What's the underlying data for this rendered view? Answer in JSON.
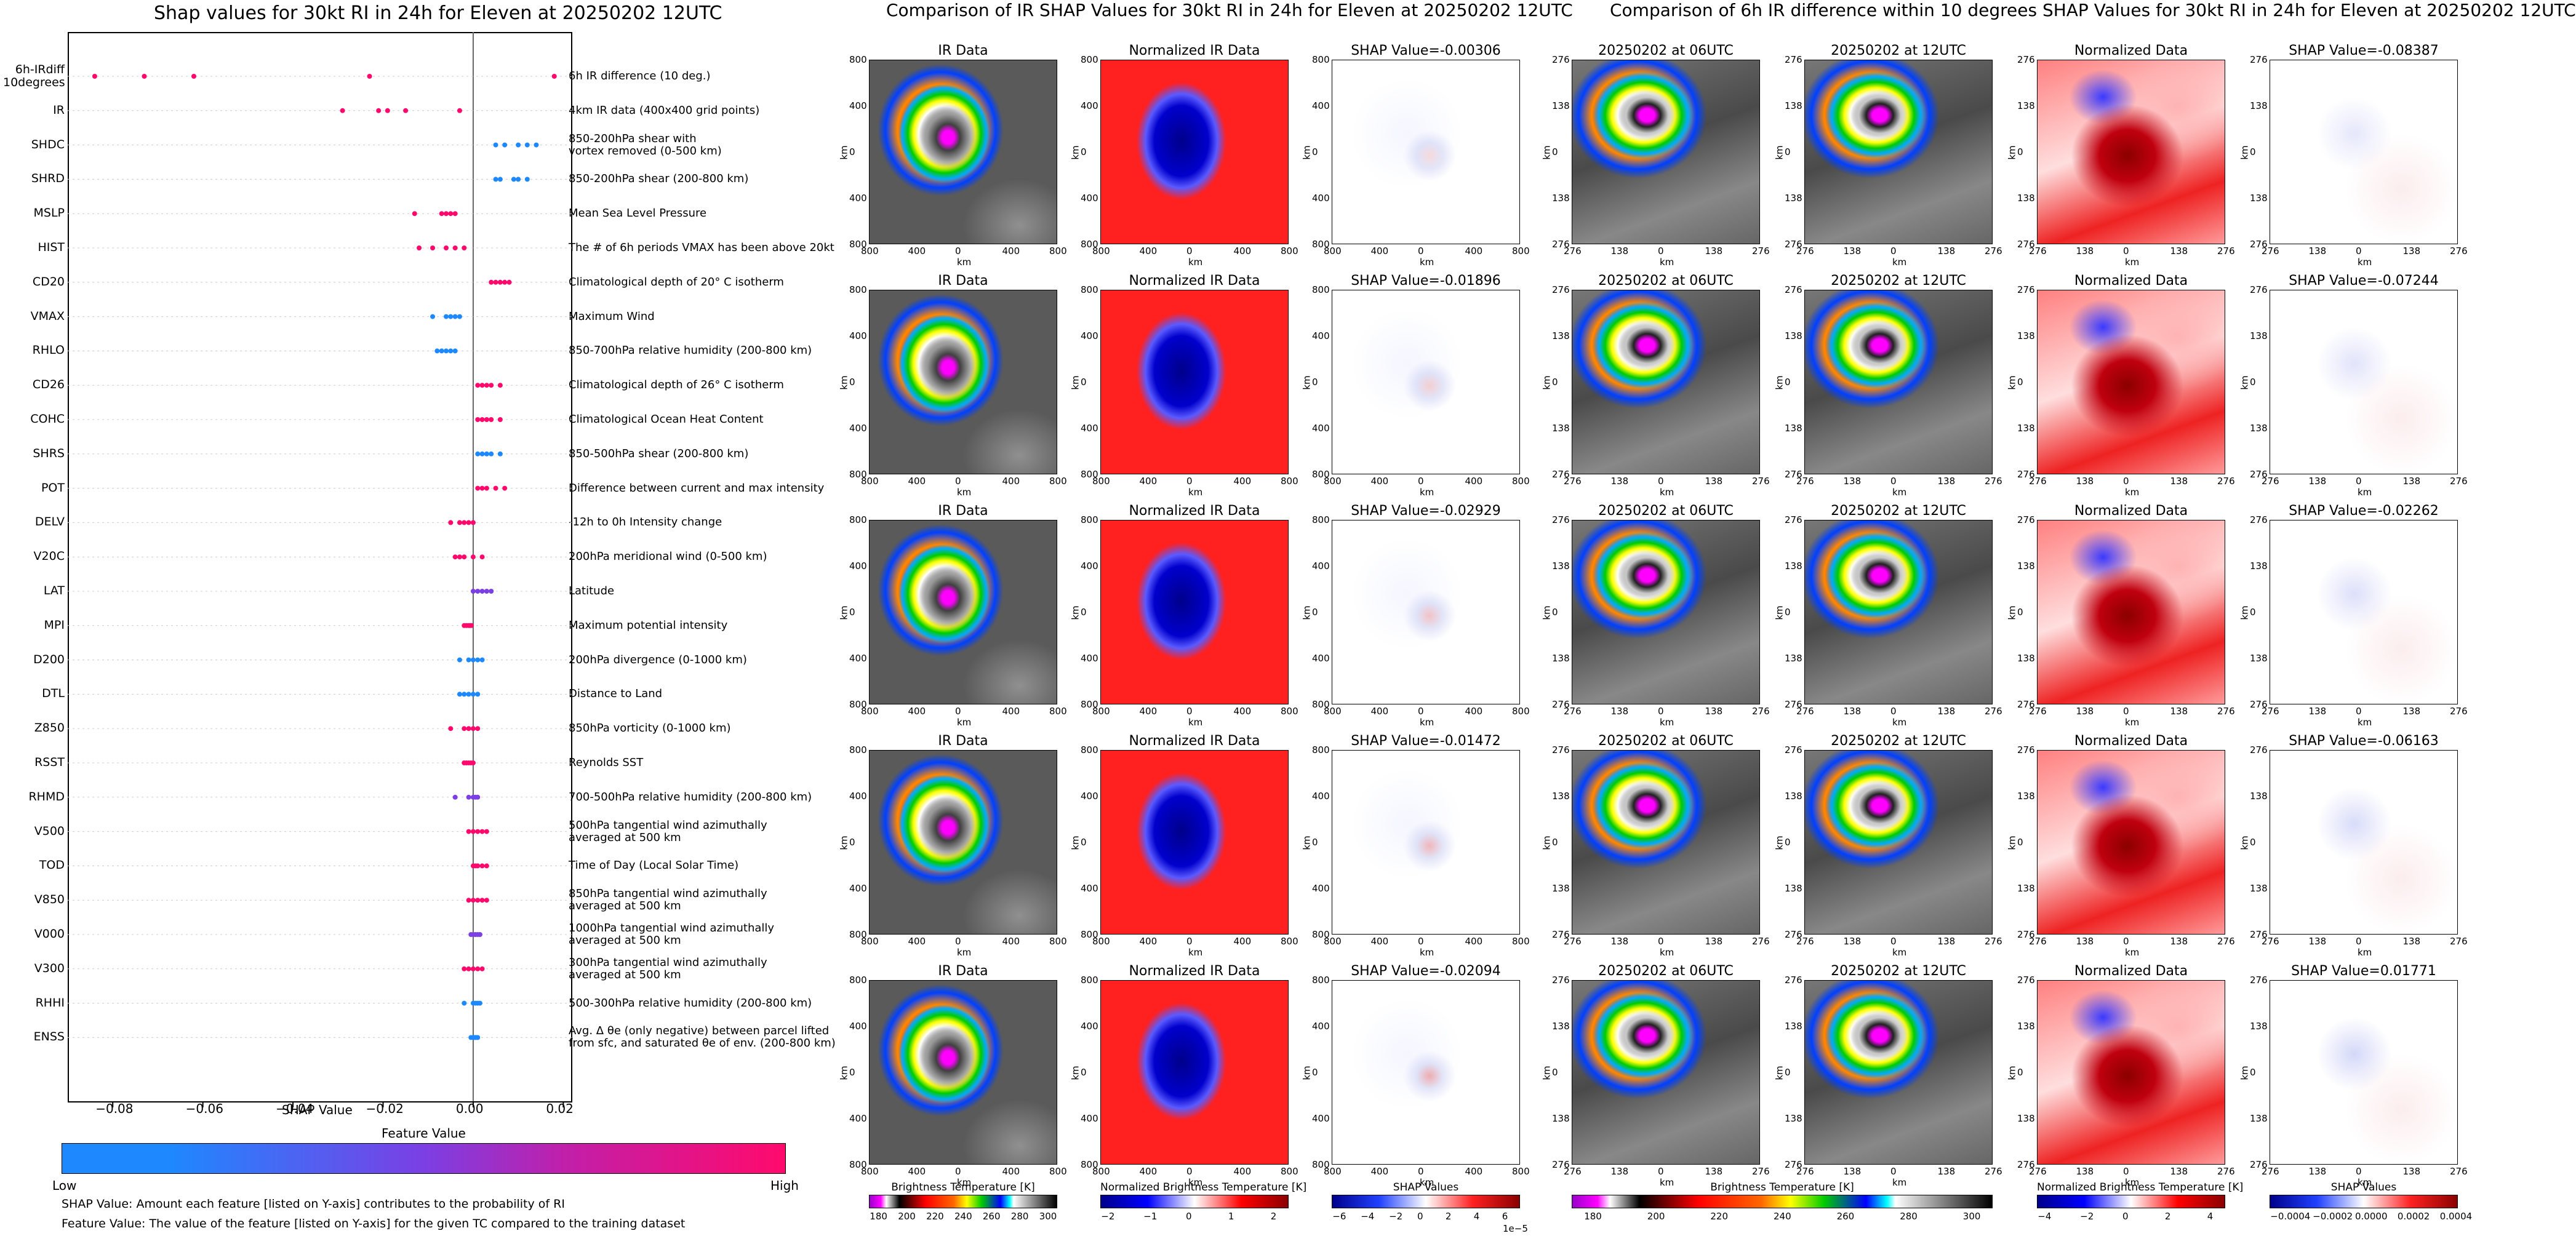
{
  "colors": {
    "low": "#1e88ff",
    "mid": "#7b3fe4",
    "high": "#ff0a6c",
    "ir_cold": "#ff00ff",
    "shap_pos": "#d7191c",
    "shap_neg": "#1f3fbf"
  },
  "left": {
    "title": "Shap values for 30kt RI in 24h for Eleven at 20250202 12UTC",
    "xlabel": "SHAP Value",
    "cb_title": "Feature Value",
    "cb_low": "Low",
    "cb_high": "High",
    "note1": "SHAP Value: Amount each feature [listed on Y-axis] contributes to the probability of RI",
    "note2": "Feature Value: The value of the feature [listed on Y-axis] for the given TC compared to the training dataset"
  },
  "mid_title": "Comparison of IR SHAP Values for 30kt RI in 24h for Eleven at 20250202 12UTC",
  "right_title": "Comparison of 6h IR difference within 10 degrees SHAP Values for 30kt RI in 24h for Eleven at 20250202 12UTC",
  "panel_titles": {
    "ir": "IR Data",
    "nir": "Normalized IR Data",
    "d06": "20250202 at 06UTC",
    "d12": "20250202 at 12UTC",
    "nd": "Normalized Data"
  },
  "axis": {
    "km": "km",
    "ir_ticks_y": [
      "800",
      "400",
      "0",
      "400",
      "800"
    ],
    "ir_ticks_x": [
      "800",
      "400",
      "0",
      "400",
      "800"
    ],
    "d_ticks": [
      "276",
      "138",
      "0",
      "138",
      "276"
    ]
  },
  "rows": [
    {
      "ir_shap": "SHAP Value=-0.00306",
      "d_shap": "SHAP Value=-0.08387"
    },
    {
      "ir_shap": "SHAP Value=-0.01896",
      "d_shap": "SHAP Value=-0.07244"
    },
    {
      "ir_shap": "SHAP Value=-0.02929",
      "d_shap": "SHAP Value=-0.02262"
    },
    {
      "ir_shap": "SHAP Value=-0.01472",
      "d_shap": "SHAP Value=-0.06163"
    },
    {
      "ir_shap": "SHAP Value=-0.02094",
      "d_shap": "SHAP Value=0.01771"
    }
  ],
  "colorbars": [
    {
      "title": "Brightness Temperature [K]",
      "ticks": [
        "180",
        "200",
        "220",
        "240",
        "260",
        "280",
        "300"
      ],
      "extra": ""
    },
    {
      "title": "Normalized Brightness Temperature [K]",
      "ticks": [
        "−2",
        "−1",
        "0",
        "1",
        "2"
      ],
      "extra": ""
    },
    {
      "title": "SHAP Values",
      "ticks": [
        "−6",
        "−4",
        "−2",
        "0",
        "2",
        "4",
        "6"
      ],
      "extra": "1e−5"
    },
    {
      "title": "Brightness Temperature [K]",
      "ticks": [
        "180",
        "200",
        "220",
        "240",
        "260",
        "280",
        "300"
      ],
      "extra": ""
    },
    {
      "title": "Normalized Brightness Temperature [K]",
      "ticks": [
        "−4",
        "−2",
        "0",
        "2",
        "4"
      ],
      "extra": ""
    },
    {
      "title": "SHAP Values",
      "ticks": [
        "−0.0004",
        "−0.0002",
        "0.0000",
        "0.0002",
        "0.0004"
      ],
      "extra": ""
    }
  ],
  "chart_data": {
    "type": "scatter",
    "title": "Shap values for 30kt RI in 24h for Eleven at 20250202 12UTC",
    "xlabel": "SHAP Value",
    "xlim": [
      -0.09,
      0.022
    ],
    "xticks": [
      "−0.08",
      "−0.06",
      "−0.04",
      "−0.02",
      "0.00",
      "0.02"
    ],
    "xtick_values": [
      -0.08,
      -0.06,
      -0.04,
      -0.02,
      0.0,
      0.02
    ],
    "features": [
      {
        "name": "6h-IRdiff\n10degrees",
        "desc": "6h IR difference (10 deg.)",
        "c": "high",
        "pts": [
          -0.084,
          -0.073,
          -0.062,
          -0.023,
          0.018
        ]
      },
      {
        "name": "IR",
        "desc": "4km IR data (400x400 grid points)",
        "c": "high",
        "pts": [
          -0.029,
          -0.021,
          -0.019,
          -0.015,
          -0.003
        ]
      },
      {
        "name": "SHDC",
        "desc": "850-200hPa shear with\nvortex removed (0-500 km)",
        "c": "low",
        "pts": [
          0.005,
          0.007,
          0.01,
          0.012,
          0.014
        ]
      },
      {
        "name": "SHRD",
        "desc": "850-200hPa shear (200-800 km)",
        "c": "low",
        "pts": [
          0.005,
          0.006,
          0.009,
          0.01,
          0.012
        ]
      },
      {
        "name": "MSLP",
        "desc": "Mean Sea Level Pressure",
        "c": "high",
        "pts": [
          -0.013,
          -0.007,
          -0.006,
          -0.005,
          -0.004
        ]
      },
      {
        "name": "HIST",
        "desc": "The # of 6h periods VMAX has been above 20kt",
        "c": "high",
        "pts": [
          -0.012,
          -0.009,
          -0.006,
          -0.004,
          -0.002
        ]
      },
      {
        "name": "CD20",
        "desc": "Climatological depth of 20° C isotherm",
        "c": "high",
        "pts": [
          0.004,
          0.005,
          0.006,
          0.007,
          0.008
        ]
      },
      {
        "name": "VMAX",
        "desc": "Maximum Wind",
        "c": "low",
        "pts": [
          -0.009,
          -0.006,
          -0.005,
          -0.004,
          -0.003
        ]
      },
      {
        "name": "RHLO",
        "desc": "850-700hPa relative humidity (200-800 km)",
        "c": "low",
        "pts": [
          -0.008,
          -0.007,
          -0.006,
          -0.005,
          -0.004
        ]
      },
      {
        "name": "CD26",
        "desc": "Climatological depth of 26° C isotherm",
        "c": "high",
        "pts": [
          0.001,
          0.002,
          0.003,
          0.004,
          0.006
        ]
      },
      {
        "name": "COHC",
        "desc": "Climatological Ocean Heat Content",
        "c": "high",
        "pts": [
          0.001,
          0.002,
          0.003,
          0.004,
          0.006
        ]
      },
      {
        "name": "SHRS",
        "desc": "850-500hPa shear (200-800 km)",
        "c": "low",
        "pts": [
          0.001,
          0.002,
          0.003,
          0.004,
          0.006
        ]
      },
      {
        "name": "POT",
        "desc": "Difference between current and max intensity",
        "c": "high",
        "pts": [
          0.001,
          0.002,
          0.003,
          0.005,
          0.007
        ]
      },
      {
        "name": "DELV",
        "desc": "-12h to 0h Intensity change",
        "c": "high",
        "pts": [
          -0.005,
          -0.003,
          -0.002,
          -0.001,
          0.0
        ]
      },
      {
        "name": "V20C",
        "desc": "200hPa meridional wind (0-500 km)",
        "c": "high",
        "pts": [
          -0.004,
          -0.003,
          -0.002,
          0.0,
          0.002
        ]
      },
      {
        "name": "LAT",
        "desc": "Latitude",
        "c": "mid",
        "pts": [
          0.0,
          0.001,
          0.002,
          0.003,
          0.004
        ]
      },
      {
        "name": "MPI",
        "desc": "Maximum potential intensity",
        "c": "high",
        "pts": [
          -0.002,
          -0.0015,
          -0.001,
          -0.0007,
          -0.0004
        ]
      },
      {
        "name": "D200",
        "desc": "200hPa divergence (0-1000 km)",
        "c": "low",
        "pts": [
          -0.003,
          -0.001,
          0.0,
          0.001,
          0.002
        ]
      },
      {
        "name": "DTL",
        "desc": "Distance to Land",
        "c": "low",
        "pts": [
          -0.003,
          -0.002,
          -0.001,
          0.0,
          0.001
        ]
      },
      {
        "name": "Z850",
        "desc": "850hPa vorticity (0-1000 km)",
        "c": "high",
        "pts": [
          -0.005,
          -0.002,
          -0.001,
          0.0,
          0.001
        ]
      },
      {
        "name": "RSST",
        "desc": "Reynolds SST",
        "c": "high",
        "pts": [
          -0.002,
          -0.0015,
          -0.001,
          -0.0005,
          0.0
        ]
      },
      {
        "name": "RHMD",
        "desc": "700-500hPa relative humidity (200-800 km)",
        "c": "mid",
        "pts": [
          -0.004,
          -0.001,
          0.0,
          0.0005,
          0.001
        ]
      },
      {
        "name": "V500",
        "desc": "500hPa tangential wind azimuthally\naveraged at 500 km",
        "c": "high",
        "pts": [
          -0.001,
          0.0,
          0.001,
          0.002,
          0.003
        ]
      },
      {
        "name": "TOD",
        "desc": "Time of Day (Local Solar Time)",
        "c": "high",
        "pts": [
          0.0,
          0.0005,
          0.001,
          0.002,
          0.003
        ]
      },
      {
        "name": "V850",
        "desc": "850hPa tangential wind azimuthally\naveraged at 500 km",
        "c": "high",
        "pts": [
          -0.001,
          0.0,
          0.001,
          0.002,
          0.003
        ]
      },
      {
        "name": "V000",
        "desc": "1000hPa tangential wind azimuthally\naveraged at 500 km",
        "c": "mid",
        "pts": [
          -0.0005,
          0.0,
          0.0005,
          0.001,
          0.0015
        ]
      },
      {
        "name": "V300",
        "desc": "300hPa tangential wind azimuthally\naveraged at 500 km",
        "c": "high",
        "pts": [
          -0.002,
          -0.001,
          0.0,
          0.001,
          0.002
        ]
      },
      {
        "name": "RHHI",
        "desc": "500-300hPa relative humidity (200-800 km)",
        "c": "low",
        "pts": [
          -0.002,
          0.0,
          0.0005,
          0.001,
          0.0015
        ]
      },
      {
        "name": "ENSS",
        "desc": "Avg. Δ θe (only negative) between parcel lifted\nfrom sfc, and saturated θe of env. (200-800 km)",
        "c": "low",
        "pts": [
          -0.0005,
          0.0,
          0.0003,
          0.0006,
          0.001
        ]
      }
    ]
  }
}
